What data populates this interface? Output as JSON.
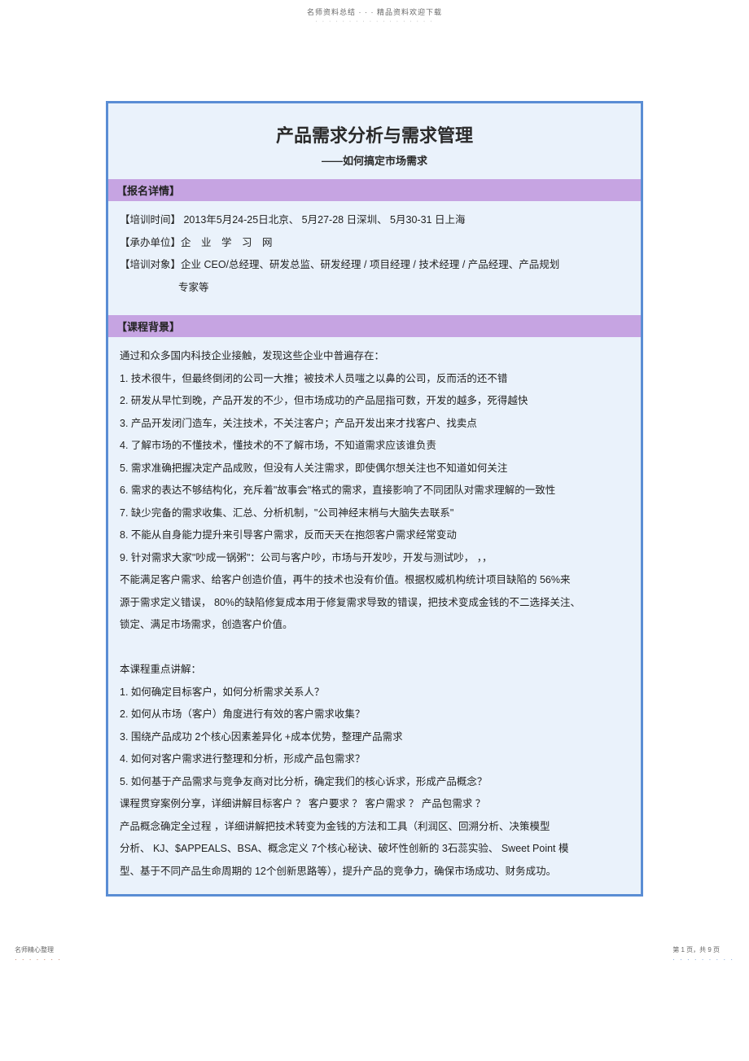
{
  "header": {
    "line1": "名师资料总结 · · · 精品资料欢迎下载",
    "line2": "· · · · · · · · · · · · · · · · · ·"
  },
  "title": {
    "main": "产品需求分析与需求管理",
    "sub": "——如何搞定市场需求"
  },
  "registration": {
    "header": "【报名详情】",
    "time": "【培训时间】 2013年5月24-25日北京、  5月27-28 日深圳、  5月30-31 日上海",
    "organizer": "【承办单位】企　业　学　习　网",
    "target_line1": "【培训对象】企业 CEO/总经理、研发总监、研发经理   / 项目经理 / 技术经理 / 产品经理、产品规划",
    "target_line2": "专家等"
  },
  "background": {
    "header": "【课程背景】",
    "intro": "通过和众多国内科技企业接触，发现这些企业中普遍存在：",
    "points": [
      "1. 技术很牛，但最终倒闭的公司一大推；被技术人员嗤之以鼻的公司，反而活的还不错",
      "2. 研发从早忙到晚，产品开发的不少，但市场成功的产品屈指可数，开发的越多，死得越快",
      "3. 产品开发闭门造车，关注技术，不关注客户；产品开发出来才找客户、找卖点",
      "4. 了解市场的不懂技术，懂技术的不了解市场，不知道需求应该谁负责",
      "5. 需求准确把握决定产品成败，但没有人关注需求，即使偶尔想关注也不知道如何关注",
      "6. 需求的表达不够结构化，充斥着\"故事会\"格式的需求，直接影响了不同团队对需求理解的一致性",
      "7. 缺少完备的需求收集、汇总、分析机制，\"公司神经末梢与大脑失去联系\"",
      "8. 不能从自身能力提升来引导客户需求，反而天天在抱怨客户需求经常变动",
      "9. 针对需求大家\"吵成一锅粥\"：公司与客户吵，市场与开发吵，开发与测试吵，        ，，"
    ],
    "conclusion1": "不能满足客户需求、给客户创造价值，再牛的技术也没有价值。根据权威机构统计项目缺陷的          56%来",
    "conclusion2": "源于需求定义错误，  80%的缺陷修复成本用于修复需求导致的错误，把技术变成金钱的不二选择关注、",
    "conclusion3": "锁定、满足市场需求，创造客户价值。",
    "focus_intro": "本课程重点讲解：",
    "focus": [
      "1. 如何确定目标客户，如何分析需求关系人？",
      "2. 如何从市场（客户）角度进行有效的客户需求收集？",
      "3. 围绕产品成功 2个核心因素差异化  +成本优势，整理产品需求",
      "4. 如何对客户需求进行整理和分析，形成产品包需求？",
      "5. 如何基于产品需求与竞争友商对比分析，确定我们的核心诉求，形成产品概念？"
    ],
    "closing1": "课程贯穿案例分享，详细讲解目标客户    ？ 客户要求 ？ 客户需求 ？ 产品包需求 ？",
    "closing2": " 产品概念确定全过程 ，详细讲解把技术转变为金钱的方法和工具（利润区、回溯分析、决策模型",
    "closing3": "分析、 KJ、$APPEALS、BSA、概念定义 7个核心秘诀、破坏性创新的   3石蕊实验、 Sweet Point  模",
    "closing4": "型、基于不同产品生命周期的   12个创新思路等），提升产品的竞争力，确保市场成功、财务成功。"
  },
  "footer": {
    "left_text": "名师精心整理",
    "left_dots": "· · · · · · ·",
    "right_text": "第 1 页，共 9 页",
    "right_dots": "· · · · · · · · ·"
  }
}
